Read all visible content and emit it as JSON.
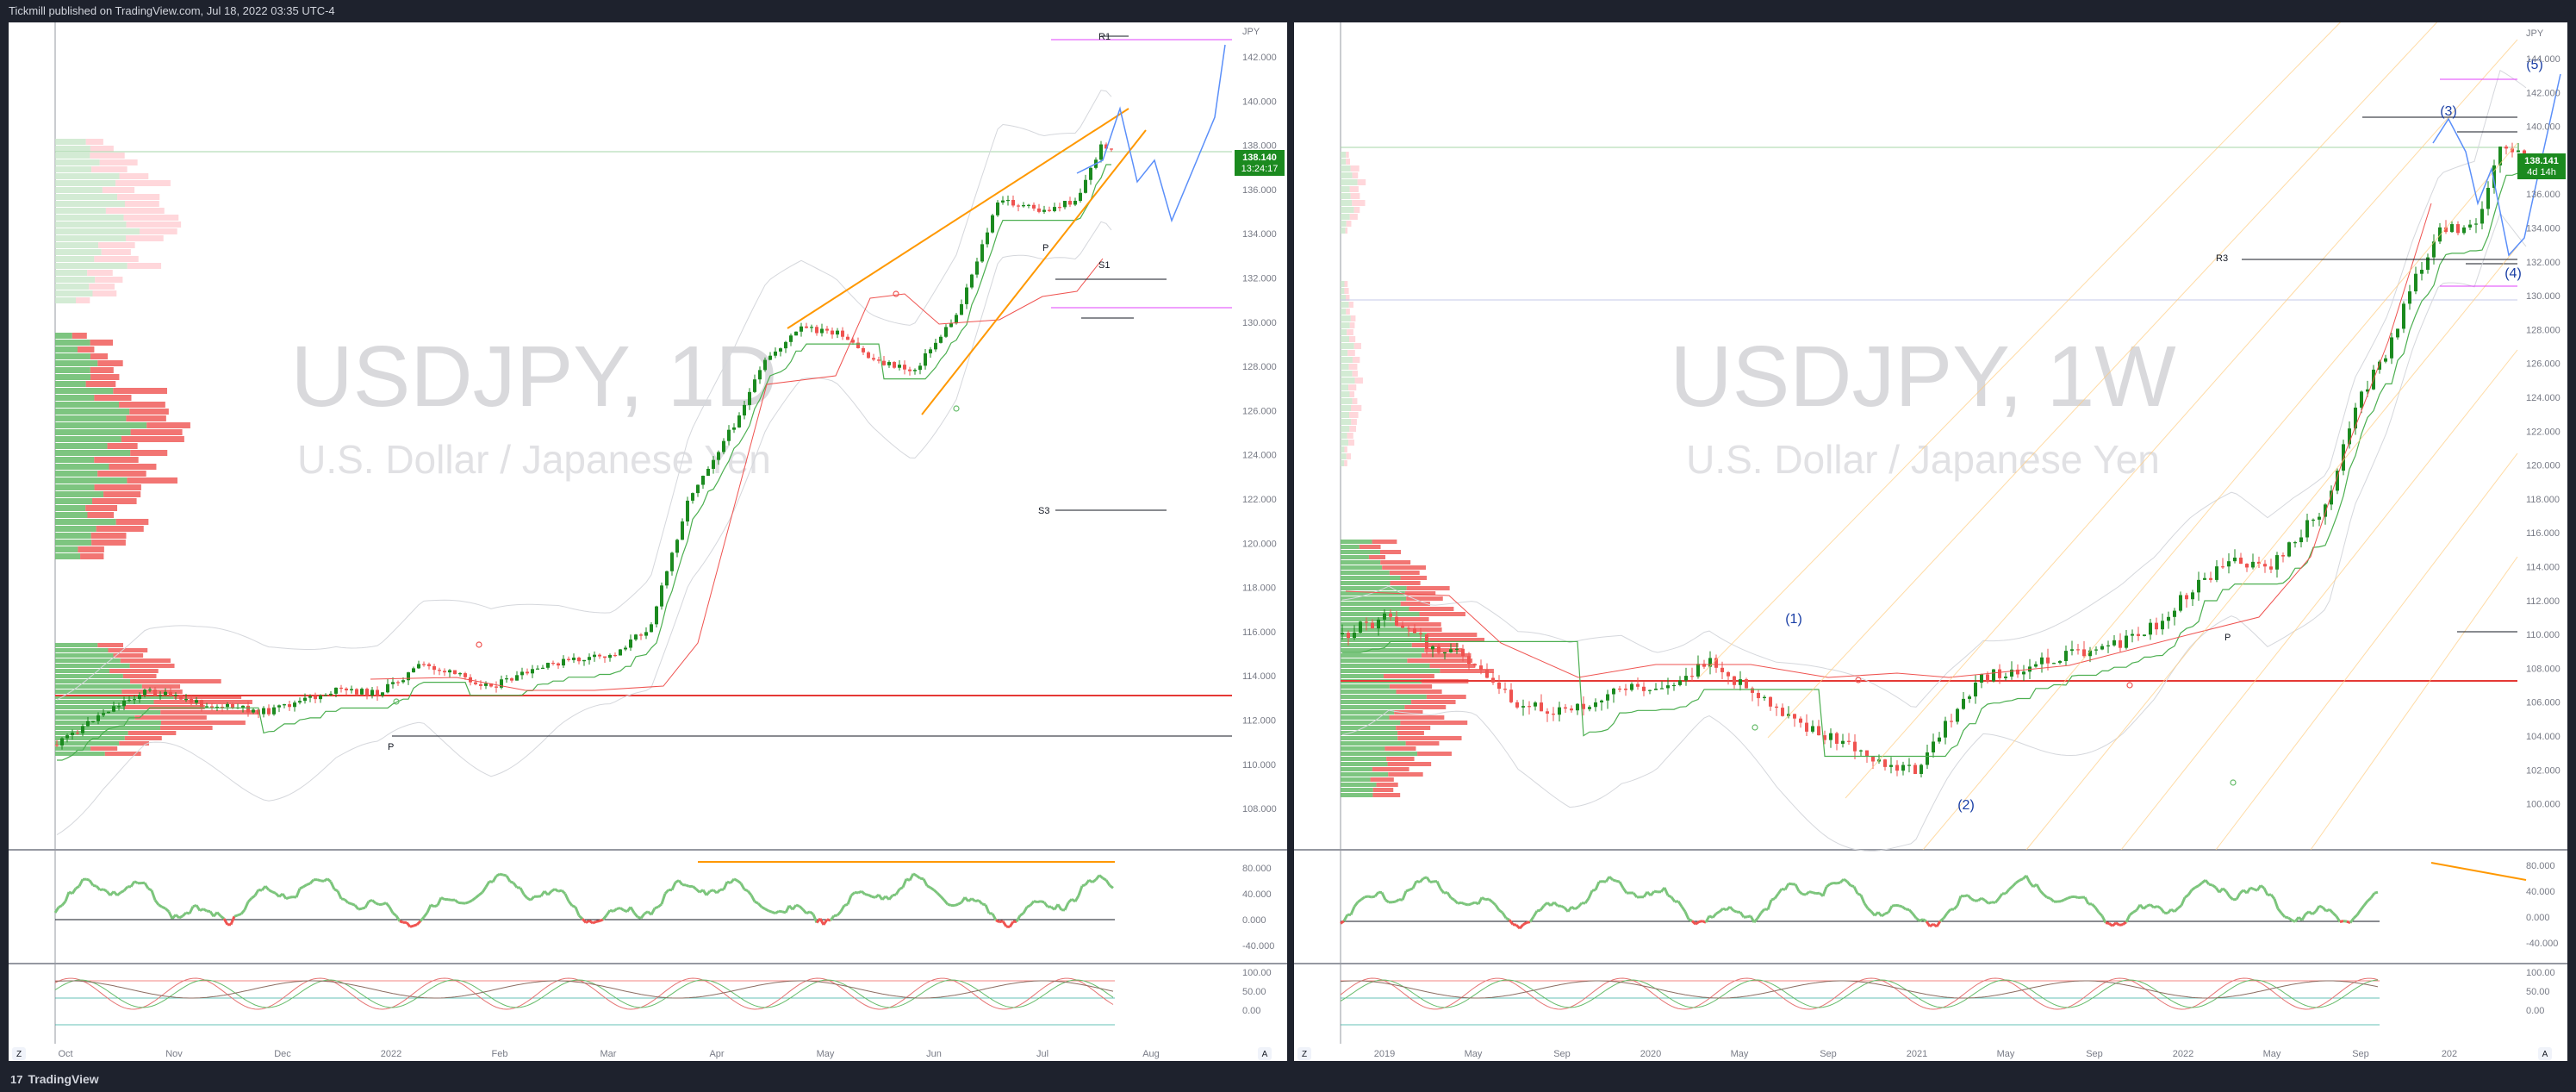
{
  "header": {
    "publisher": "Tickmill published on TradingView.com, Jul 18, 2022 03:35 UTC-4"
  },
  "footer": {
    "brand": "TradingView",
    "logo_glyph": "17"
  },
  "colors": {
    "up": "#26a69a",
    "up_green": "#2e7d32",
    "down": "#ef5350",
    "orange": "#ff9800",
    "pivot_red": "#e53935",
    "magenta": "#e040fb",
    "rsi_green": "#7cc57c",
    "rsi_red": "#ef5350"
  },
  "charts": [
    {
      "id": "left",
      "symbol": "USDJPY, 1D",
      "name": "U.S. Dollar / Japanese Yen",
      "currency": "JPY",
      "price_label": "138.140",
      "countdown": "13:24:17",
      "y_ticks": [
        "142.000",
        "140.000",
        "138.000",
        "136.000",
        "134.000",
        "132.000",
        "130.000",
        "128.000",
        "126.000",
        "124.000",
        "122.000",
        "120.000",
        "118.000",
        "116.000",
        "114.000",
        "112.000",
        "110.000",
        "108.000"
      ],
      "x_ticks": [
        "Oct",
        "Nov",
        "Dec",
        "2022",
        "Feb",
        "Mar",
        "Apr",
        "May",
        "Jun",
        "Jul",
        "Aug"
      ],
      "rsi_ticks": [
        "80.000",
        "40.000",
        "0.000",
        "-40.000"
      ],
      "stoch_ticks": [
        "100.00",
        "50.00",
        "0.00"
      ],
      "level_labels": {
        "r1": "R1",
        "p_top": "P",
        "s1": "S1",
        "s3": "S3",
        "p_low": "P"
      },
      "corner_z": "Z",
      "corner_a": "A"
    },
    {
      "id": "right",
      "symbol": "USDJPY, 1W",
      "name": "U.S. Dollar / Japanese Yen",
      "currency": "JPY",
      "price_label": "138.141",
      "countdown": "4d 14h",
      "y_ticks": [
        "144.000",
        "142.000",
        "140.000",
        "138.000",
        "136.000",
        "134.000",
        "132.000",
        "130.000",
        "128.000",
        "126.000",
        "124.000",
        "122.000",
        "120.000",
        "118.000",
        "116.000",
        "114.000",
        "112.000",
        "110.000",
        "108.000",
        "106.000",
        "104.000",
        "102.000",
        "100.000"
      ],
      "x_ticks": [
        "2019",
        "May",
        "Sep",
        "2020",
        "May",
        "Sep",
        "2021",
        "May",
        "Sep",
        "2022",
        "May",
        "Sep",
        "202"
      ],
      "rsi_ticks": [
        "80.000",
        "40.000",
        "0.000",
        "-40.000"
      ],
      "stoch_ticks": [
        "100.00",
        "50.00",
        "0.00"
      ],
      "level_labels": {
        "r3": "R3",
        "p": "P"
      },
      "wave_labels": [
        "(1)",
        "(2)",
        "(3)",
        "(4)",
        "(5)"
      ],
      "corner_z": "Z",
      "corner_a": "A"
    }
  ]
}
